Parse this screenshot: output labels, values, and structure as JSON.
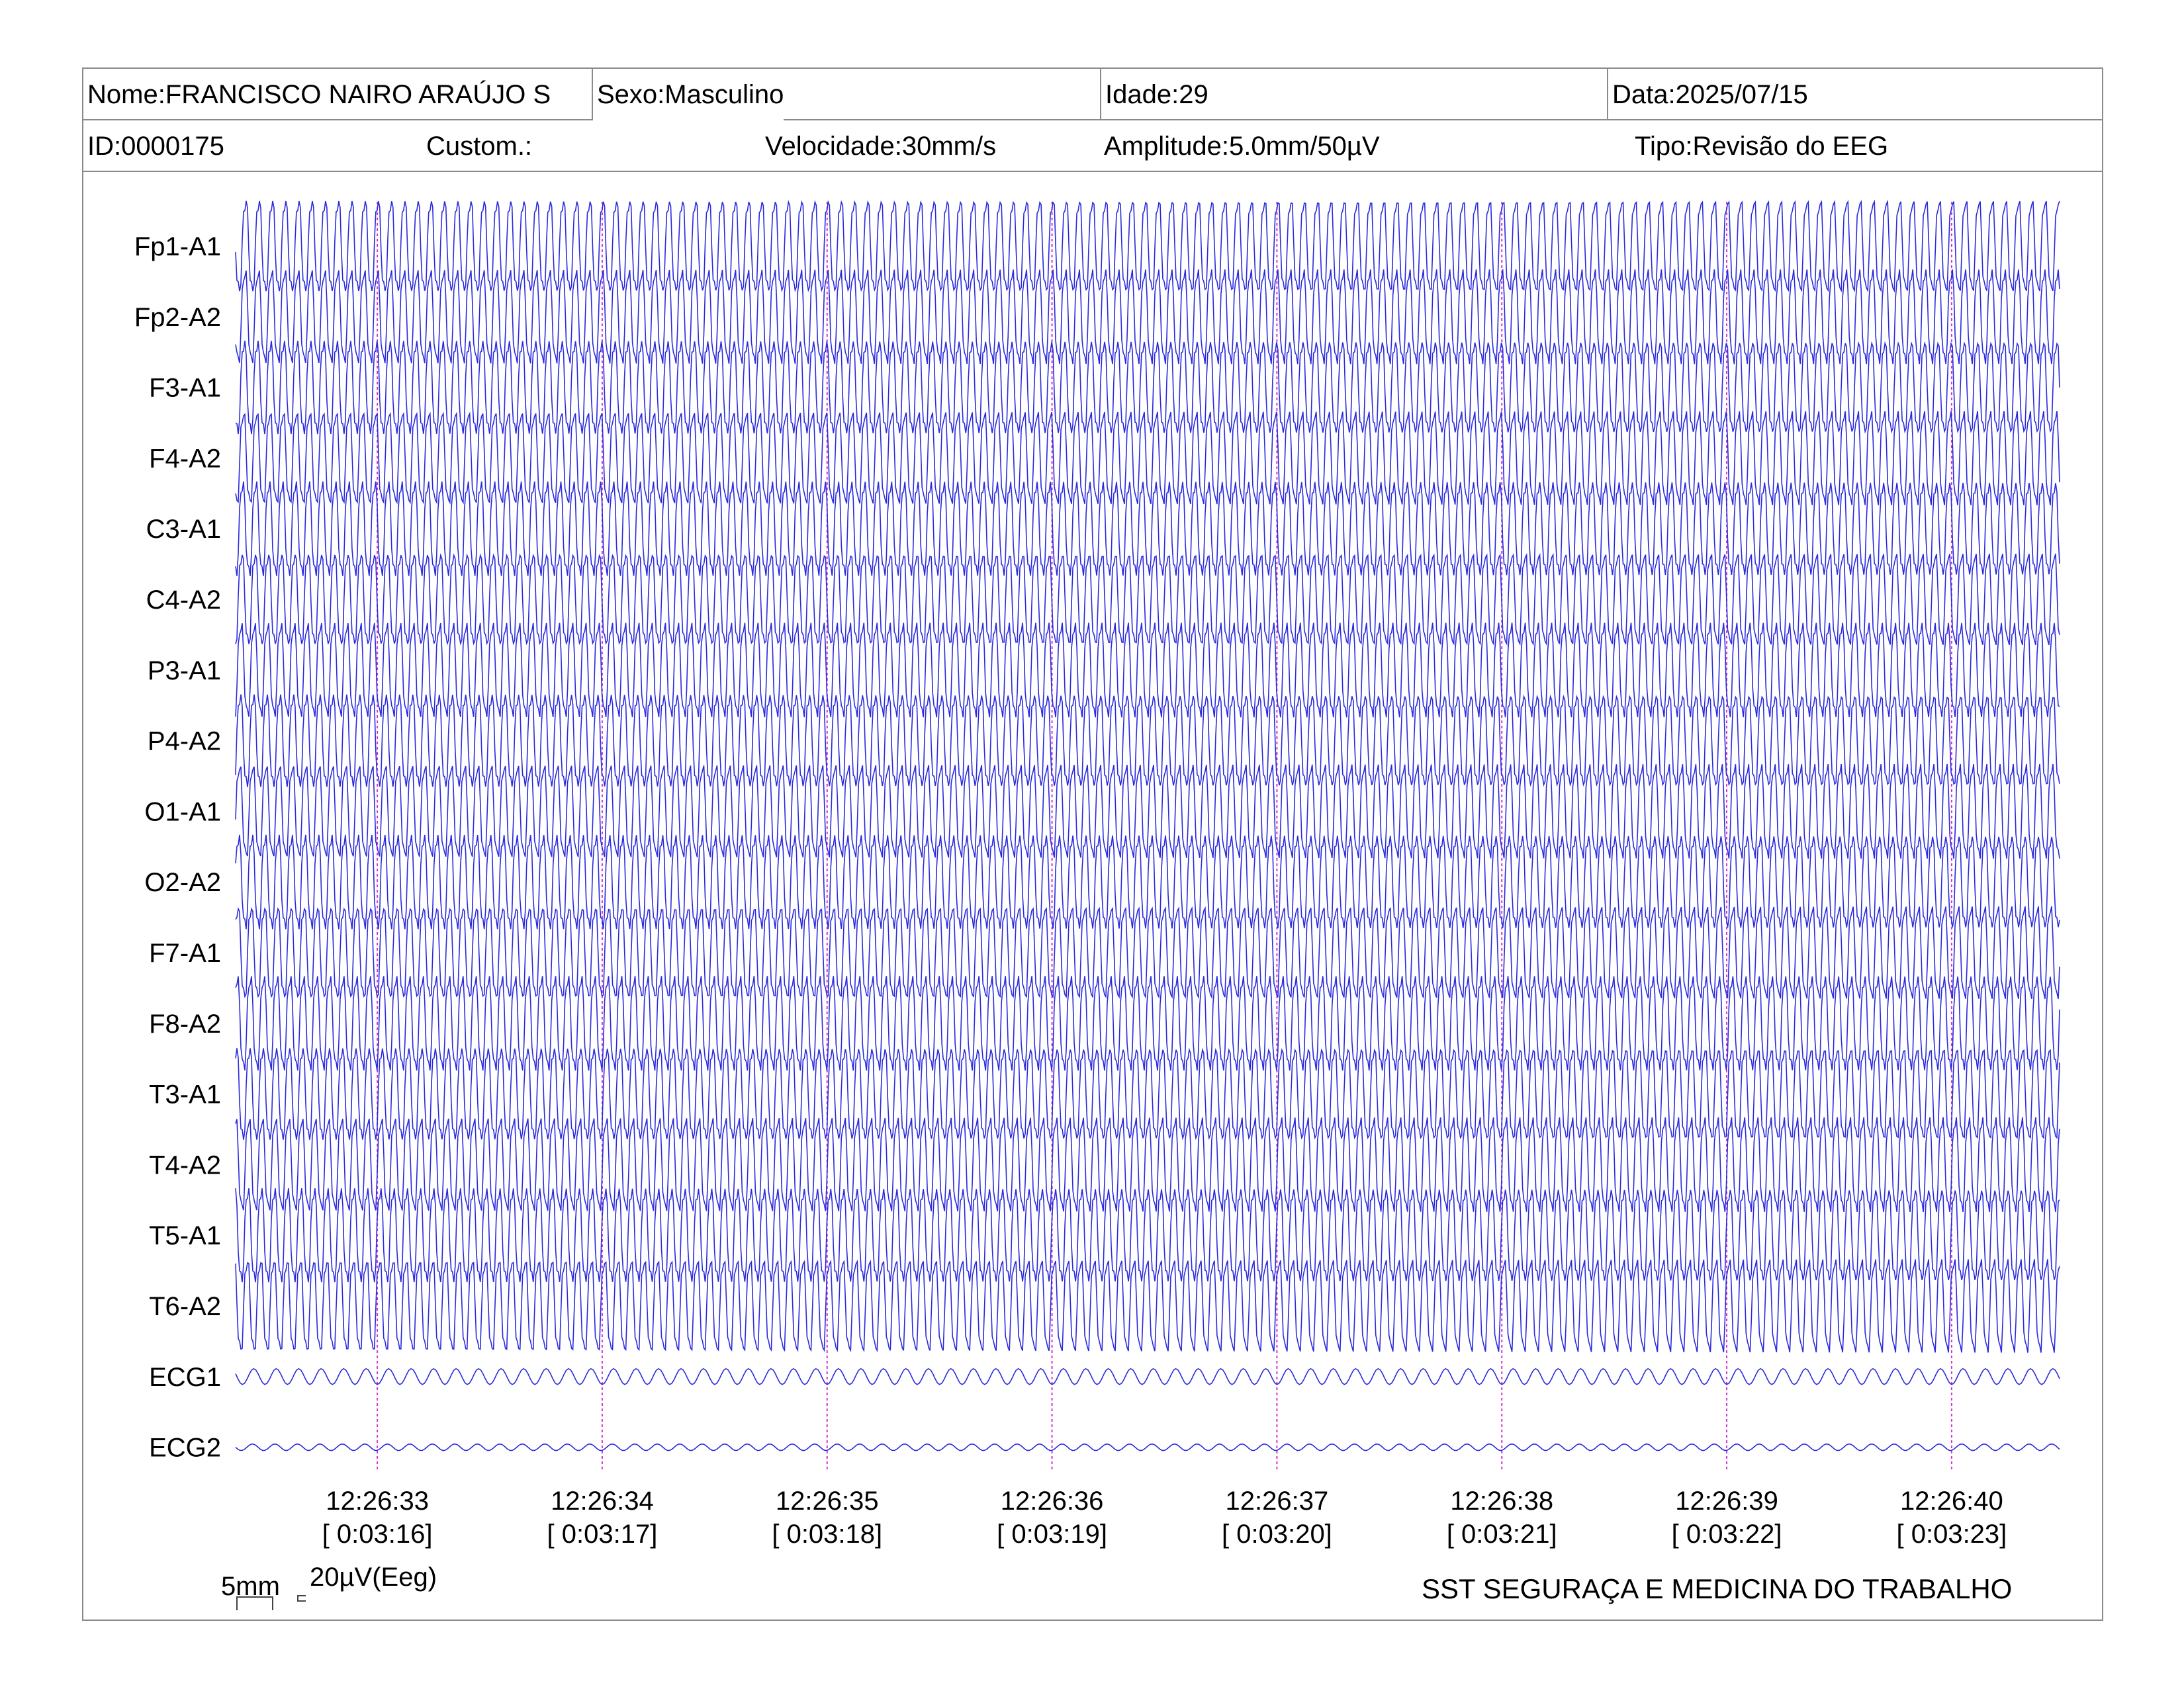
{
  "header": {
    "nome": "Nome:FRANCISCO NAIRO ARAÚJO S",
    "sexo": "Sexo:Masculino",
    "idade": "Idade:29",
    "data": "Data:2025/07/15",
    "id": "ID:0000175",
    "custom": "Custom.:",
    "velocidade": "Velocidade:30mm/s",
    "amplitude": "Amplitude:5.0mm/50µV",
    "tipo": "Tipo:Revisão do EEG"
  },
  "scale": {
    "time_label": "5mm",
    "amp_label": "20µV(Eeg)"
  },
  "footer": {
    "org": "SST SEGURAÇA E MEDICINA DO TRABALHO"
  },
  "colors": {
    "trace": "#2a2adc",
    "marker": "#d633d6",
    "border": "#8a8a8a"
  },
  "chart_data": {
    "type": "line",
    "channels": [
      "Fp1-A1",
      "Fp2-A2",
      "F3-A1",
      "F4-A2",
      "C3-A1",
      "C4-A2",
      "P3-A1",
      "P4-A2",
      "O1-A1",
      "O2-A2",
      "F7-A1",
      "F8-A2",
      "T3-A1",
      "T4-A2",
      "T5-A1",
      "T6-A2",
      "ECG1",
      "ECG2"
    ],
    "time_marks": [
      {
        "clock": "12:26:33",
        "elapsed": "[ 0:03:16]"
      },
      {
        "clock": "12:26:34",
        "elapsed": "[ 0:03:17]"
      },
      {
        "clock": "12:26:35",
        "elapsed": "[ 0:03:18]"
      },
      {
        "clock": "12:26:36",
        "elapsed": "[ 0:03:19]"
      },
      {
        "clock": "12:26:37",
        "elapsed": "[ 0:03:20]"
      },
      {
        "clock": "12:26:38",
        "elapsed": "[ 0:03:21]"
      },
      {
        "clock": "12:26:39",
        "elapsed": "[ 0:03:22]"
      },
      {
        "clock": "12:26:40",
        "elapsed": "[ 0:03:23]"
      }
    ],
    "x_range_seconds": [
      12.37,
      20.48
    ],
    "wave_hz": 17,
    "ecg_hz": 10,
    "grid": false
  }
}
